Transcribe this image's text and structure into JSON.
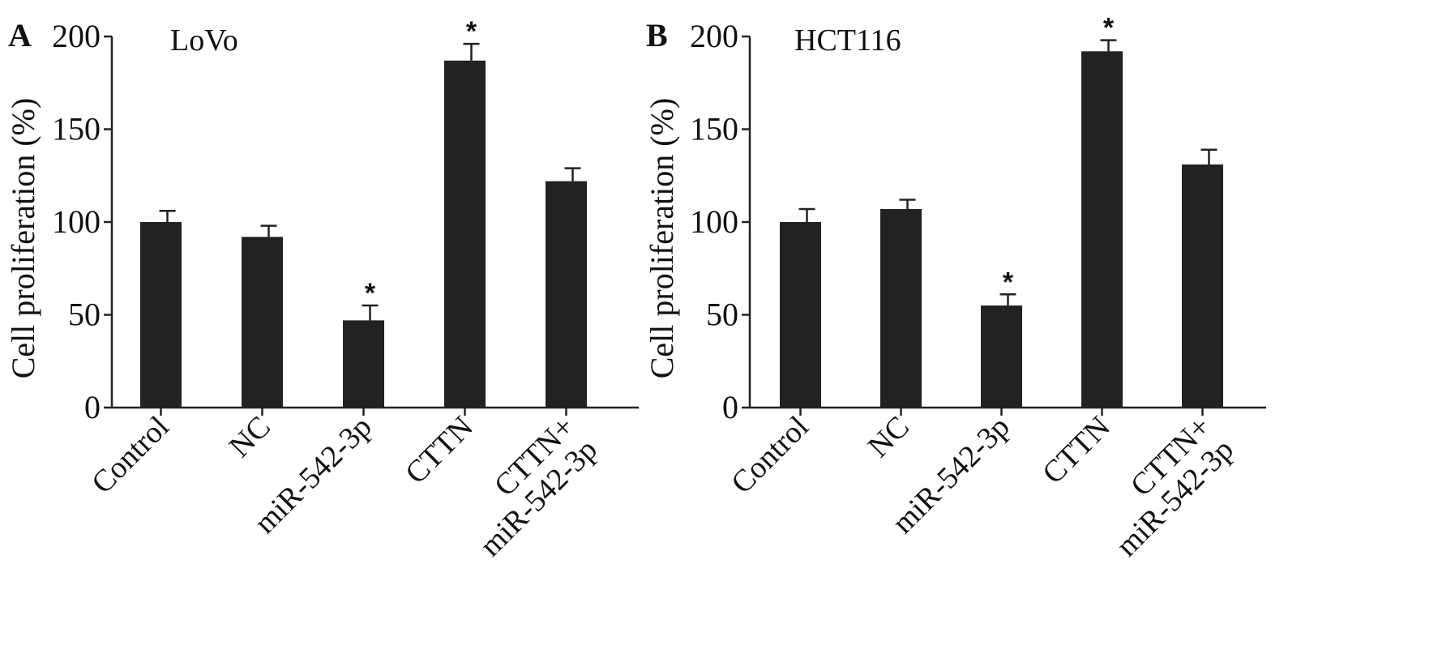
{
  "chart_data": [
    {
      "type": "bar",
      "panel_label": "A",
      "cell_line": "LoVo",
      "ylabel": "Cell proliferation (%)",
      "ylim": [
        0,
        200
      ],
      "yticks": [
        "0",
        "50",
        "100",
        "150",
        "200"
      ],
      "categories": [
        [
          "Control"
        ],
        [
          "NC"
        ],
        [
          "miR-542-3p"
        ],
        [
          "CTTN"
        ],
        [
          "CTTN+",
          "miR-542-3p"
        ]
      ],
      "values": [
        100,
        92,
        47,
        187,
        122
      ],
      "errors": [
        6,
        6,
        8,
        9,
        7
      ],
      "significance": [
        "",
        "",
        "*",
        "*",
        ""
      ],
      "bar_color": "#222222"
    },
    {
      "type": "bar",
      "panel_label": "B",
      "cell_line": "HCT116",
      "ylabel": "Cell proliferation (%)",
      "ylim": [
        0,
        200
      ],
      "yticks": [
        "0",
        "50",
        "100",
        "150",
        "200"
      ],
      "categories": [
        [
          "Control"
        ],
        [
          "NC"
        ],
        [
          "miR-542-3p"
        ],
        [
          "CTTN"
        ],
        [
          "CTTN+",
          "miR-542-3p"
        ]
      ],
      "values": [
        100,
        107,
        55,
        192,
        131
      ],
      "errors": [
        7,
        5,
        6,
        6,
        8
      ],
      "significance": [
        "",
        "",
        "*",
        "*",
        ""
      ],
      "bar_color": "#222222"
    }
  ]
}
